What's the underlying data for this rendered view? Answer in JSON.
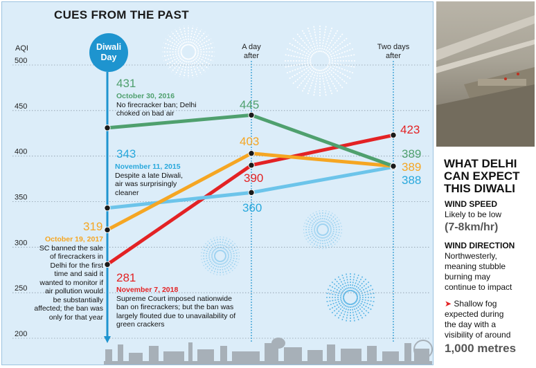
{
  "title": "CUES FROM THE PAST",
  "axis_unit": "AQI",
  "diwali_badge": [
    "Diwali",
    "Day"
  ],
  "columns": {
    "a_day_after": [
      "A day",
      "after"
    ],
    "two_days_after": [
      "Two days",
      "after"
    ]
  },
  "colors": {
    "y2016": "#4fa06e",
    "y2015": "#6cc4ea",
    "y2017": "#f5a623",
    "y2018": "#e32224",
    "diwali_line": "#1e94cf",
    "background": "#dcedf9"
  },
  "chart_data": {
    "type": "line",
    "title": "CUES FROM THE PAST",
    "ylabel": "AQI",
    "ylim": [
      200,
      500
    ],
    "yticks": [
      500,
      450,
      400,
      350,
      300,
      250,
      200
    ],
    "categories": [
      "Diwali Day",
      "A day after",
      "Two days after"
    ],
    "series": [
      {
        "name": "October 30, 2016",
        "color": "#4fa06e",
        "values": [
          431,
          445,
          389
        ]
      },
      {
        "name": "November 11, 2015",
        "color": "#6cc4ea",
        "values": [
          343,
          360,
          388
        ]
      },
      {
        "name": "October 19, 2017",
        "color": "#f5a623",
        "values": [
          319,
          403,
          389
        ]
      },
      {
        "name": "November 7, 2018",
        "color": "#e32224",
        "values": [
          281,
          390,
          423
        ]
      }
    ]
  },
  "value_labels": {
    "s2016": [
      "431",
      "445",
      "389"
    ],
    "s2015": [
      "343",
      "360",
      "388"
    ],
    "s2017": [
      "319",
      "403",
      "389"
    ],
    "s2018": [
      "281",
      "390",
      "423"
    ]
  },
  "notes": {
    "n2016": {
      "date": "October 30, 2016",
      "lines": [
        "No firecracker ban; Delhi",
        "choked on bad air"
      ]
    },
    "n2015": {
      "date": "November 11, 2015",
      "lines": [
        "Despite a late Diwali,",
        "air was surprisingly",
        "cleaner"
      ]
    },
    "n2017": {
      "date": "October 19, 2017",
      "lines": [
        "SC banned the sale",
        "of firecrackers in",
        "Delhi for the first",
        "time and said it",
        "wanted to monitor if",
        "air pollution would",
        "be substantially",
        "affected; the ban was",
        "only for that year"
      ]
    },
    "n2018": {
      "date": "November 7, 2018",
      "lines": [
        "Supreme Court imposed nationwide",
        "ban on firecrackers; but the ban was",
        "largely flouted due to unavailability of",
        "green crackers"
      ]
    }
  },
  "side": {
    "heading": [
      "WHAT DELHI",
      "CAN EXPECT",
      "THIS DIWALI"
    ],
    "wind_speed_label": "WIND SPEED",
    "wind_speed_text": "Likely to be low",
    "wind_speed_value": "(7-8km/hr)",
    "wind_dir_label": "WIND DIRECTION",
    "wind_dir_text": [
      "Northwesterly,",
      "meaning stubble",
      "burning may",
      "continue to impact"
    ],
    "fog_text": [
      "Shallow fog",
      "expected during",
      "the day with a",
      "visibility of around"
    ],
    "fog_value": "1,000 metres"
  }
}
